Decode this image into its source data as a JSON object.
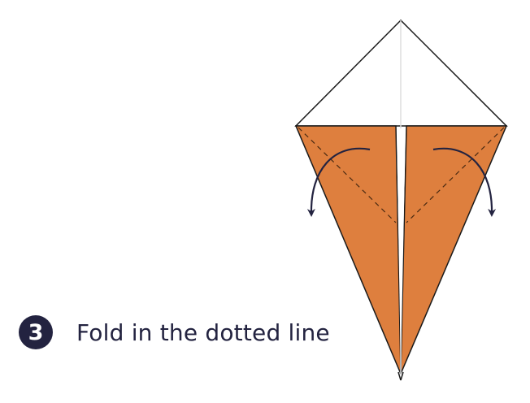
{
  "step": {
    "number": "3",
    "instruction": "Fold in the dotted line"
  },
  "colors": {
    "paper_front": "#de7f3e",
    "paper_back": "#ffffff",
    "outline": "#1a1a1a",
    "fold_line": "#4a2a12",
    "arrow": "#232340",
    "badge": "#232340",
    "text": "#232340"
  },
  "icons": {
    "left_arrow": "fold-arrow-left-icon",
    "right_arrow": "fold-arrow-right-icon"
  }
}
